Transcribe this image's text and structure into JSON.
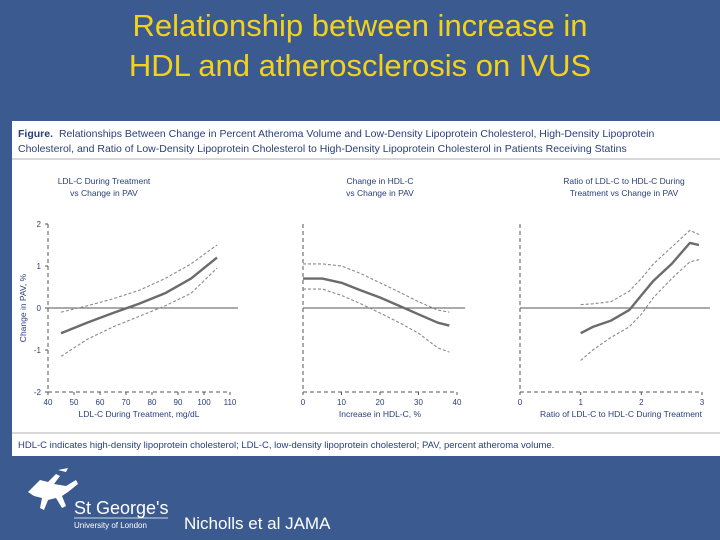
{
  "slide": {
    "title_line1": "Relationship between increase in",
    "title_line2": "HDL and atherosclerosis on IVUS",
    "citation": "Nicholls et al JAMA",
    "logo_name": "St George's",
    "logo_sub": "University of London",
    "logo_icon": "horse-rider-icon"
  },
  "figure": {
    "caption_bold": "Figure.",
    "caption_line1": "Relationships Between Change in Percent Atheroma Volume and Low-Density Lipoprotein Cholesterol, High-Density Lipoprotein",
    "caption_line2": "Cholesterol, and Ratio of Low-Density Lipoprotein Cholesterol to High-Density Lipoprotein Cholesterol in Patients Receiving Statins",
    "footnote": "HDL-C indicates high-density lipoprotein cholesterol; LDL-C, low-density lipoprotein cholesterol; PAV, percent atheroma volume.",
    "colors": {
      "curve": "#6b6b6b",
      "ci": "#8a8a8a",
      "axis": "#555555",
      "text": "#2a3f7a"
    }
  },
  "chart_data": [
    {
      "type": "line",
      "title_line1": "LDL-C During Treatment",
      "title_line2": "vs Change in PAV",
      "xlabel": "LDL-C During Treatment, mg/dL",
      "ylabel": "Change in PAV, %",
      "xlim": [
        40,
        110
      ],
      "ylim": [
        -2,
        2
      ],
      "xticks": [
        "40",
        "50",
        "60",
        "70",
        "80",
        "90",
        "100",
        "110"
      ],
      "xtick_values": [
        40,
        50,
        60,
        70,
        80,
        90,
        100,
        110
      ],
      "yticks": [
        "-2",
        "-1",
        "0",
        "1",
        "2"
      ],
      "ytick_values": [
        -2,
        -1,
        0,
        1,
        2
      ],
      "series": [
        {
          "role": "estimate",
          "x": [
            45,
            55,
            65,
            75,
            85,
            95,
            105
          ],
          "y": [
            -0.6,
            -0.35,
            -0.12,
            0.1,
            0.35,
            0.7,
            1.2
          ]
        },
        {
          "role": "upper",
          "x": [
            45,
            55,
            65,
            75,
            85,
            95,
            105
          ],
          "y": [
            -0.1,
            0.05,
            0.22,
            0.42,
            0.7,
            1.05,
            1.5
          ]
        },
        {
          "role": "lower",
          "x": [
            45,
            55,
            65,
            75,
            85,
            95,
            105
          ],
          "y": [
            -1.15,
            -0.75,
            -0.45,
            -0.2,
            0.05,
            0.35,
            0.95
          ]
        }
      ]
    },
    {
      "type": "line",
      "title_line1": "Change in HDL-C",
      "title_line2": "vs Change in PAV",
      "xlabel": "Increase in HDL-C, %",
      "ylabel": "",
      "xlim": [
        0,
        40
      ],
      "ylim": [
        -2,
        2
      ],
      "xticks": [
        "0",
        "10",
        "20",
        "30",
        "40"
      ],
      "xtick_values": [
        0,
        10,
        20,
        30,
        40
      ],
      "yticks": [],
      "ytick_values": [],
      "series": [
        {
          "role": "estimate",
          "x": [
            0,
            5,
            10,
            15,
            20,
            25,
            30,
            35,
            38
          ],
          "y": [
            0.7,
            0.7,
            0.6,
            0.42,
            0.25,
            0.05,
            -0.15,
            -0.35,
            -0.42
          ]
        },
        {
          "role": "upper",
          "x": [
            0,
            5,
            10,
            15,
            20,
            25,
            30,
            35,
            38
          ],
          "y": [
            1.05,
            1.05,
            1.0,
            0.82,
            0.6,
            0.38,
            0.15,
            -0.05,
            -0.1
          ]
        },
        {
          "role": "lower",
          "x": [
            0,
            5,
            10,
            15,
            20,
            25,
            30,
            35,
            38
          ],
          "y": [
            0.45,
            0.45,
            0.3,
            0.1,
            -0.12,
            -0.35,
            -0.6,
            -0.95,
            -1.05
          ]
        }
      ]
    },
    {
      "type": "line",
      "title_line1": "Ratio of LDL-C to HDL-C During",
      "title_line2": "Treatment vs Change in PAV",
      "xlabel": "Ratio of LDL-C to HDL-C During Treatment",
      "ylabel": "",
      "xlim": [
        0,
        3
      ],
      "ylim": [
        -2,
        2
      ],
      "xticks": [
        "0",
        "1",
        "2",
        "3"
      ],
      "xtick_values": [
        0,
        1,
        2,
        3
      ],
      "yticks": [],
      "ytick_values": [],
      "series": [
        {
          "role": "estimate",
          "x": [
            1.0,
            1.2,
            1.5,
            1.8,
            2.0,
            2.2,
            2.5,
            2.8,
            2.95
          ],
          "y": [
            -0.6,
            -0.45,
            -0.3,
            -0.05,
            0.3,
            0.65,
            1.05,
            1.55,
            1.5
          ]
        },
        {
          "role": "upper",
          "x": [
            1.0,
            1.2,
            1.5,
            1.8,
            2.0,
            2.2,
            2.5,
            2.8,
            2.95
          ],
          "y": [
            0.08,
            0.1,
            0.15,
            0.4,
            0.7,
            1.05,
            1.45,
            1.85,
            1.75
          ]
        },
        {
          "role": "lower",
          "x": [
            1.0,
            1.2,
            1.5,
            1.8,
            2.0,
            2.2,
            2.5,
            2.8,
            2.95
          ],
          "y": [
            -1.25,
            -1.0,
            -0.7,
            -0.45,
            -0.15,
            0.25,
            0.7,
            1.1,
            1.15
          ]
        }
      ]
    }
  ]
}
